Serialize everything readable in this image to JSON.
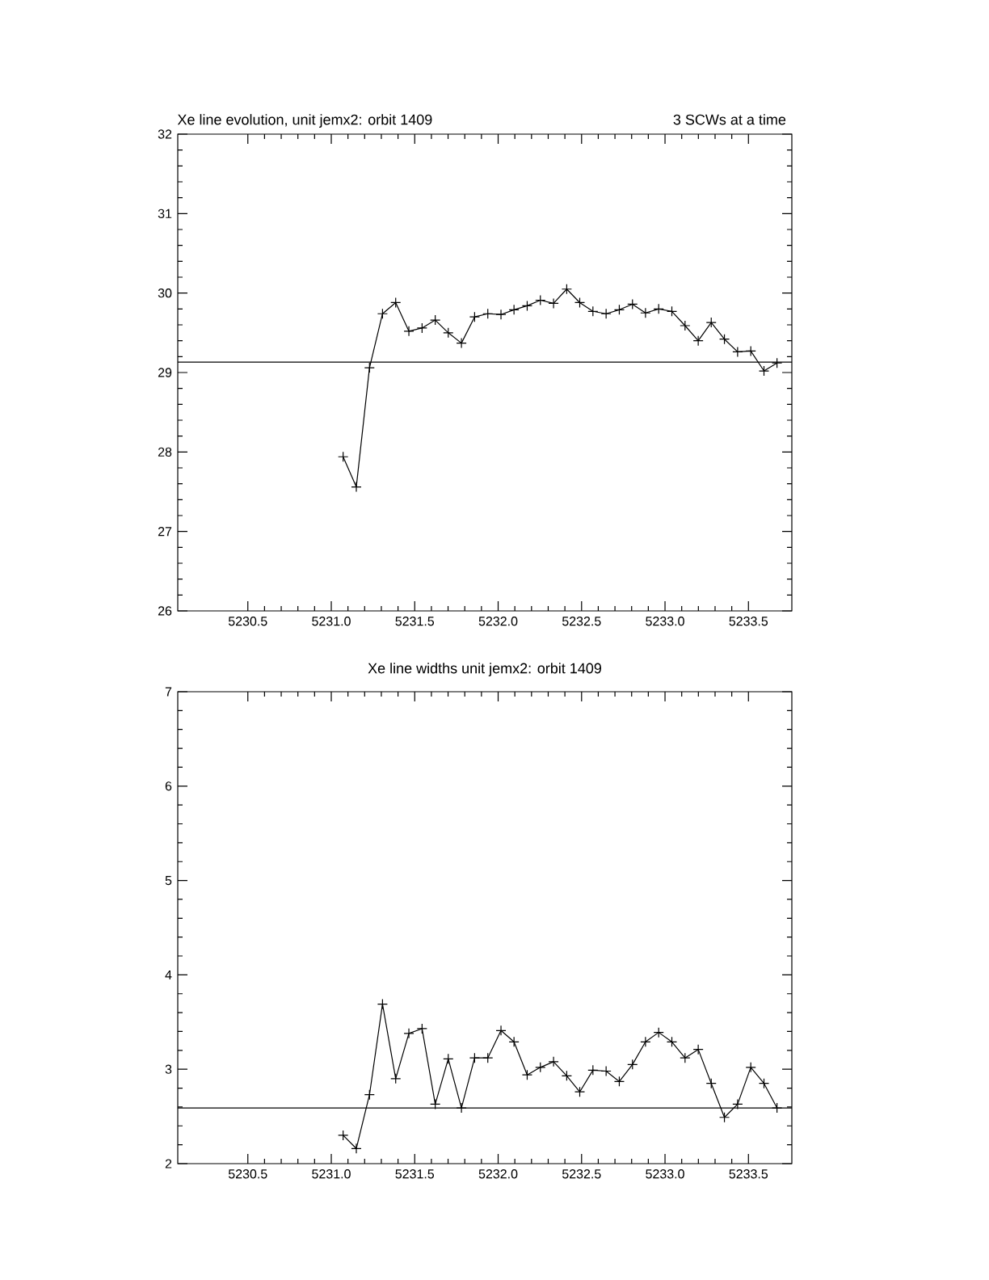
{
  "chart_data": [
    {
      "type": "line",
      "title": "Xe line evolution, unit jemx2: orbit 1409",
      "subtitle": "3 SCWs at a time",
      "x": [
        5231.071,
        5231.15,
        5231.229,
        5231.307,
        5231.386,
        5231.465,
        5231.544,
        5231.623,
        5231.701,
        5231.78,
        5231.859,
        5231.938,
        5232.017,
        5232.095,
        5232.174,
        5232.253,
        5232.332,
        5232.411,
        5232.489,
        5232.568,
        5232.647,
        5232.726,
        5232.805,
        5232.883,
        5232.962,
        5233.041,
        5233.12,
        5233.199,
        5233.277,
        5233.356,
        5233.435,
        5233.514,
        5233.593,
        5233.671
      ],
      "series": [
        {
          "color": "#000000",
          "values": [
            27.94,
            27.56,
            29.06,
            29.74,
            29.88,
            29.52,
            29.56,
            29.66,
            29.5,
            29.37,
            29.7,
            29.74,
            29.73,
            29.79,
            29.84,
            29.91,
            29.87,
            30.05,
            29.88,
            29.77,
            29.74,
            29.79,
            29.86,
            29.75,
            29.8,
            29.77,
            29.59,
            29.4,
            29.63,
            29.42,
            29.26,
            29.27,
            29.02,
            29.12
          ]
        }
      ],
      "ref_lines": [
        {
          "axis": "y",
          "value": 29.13,
          "color": "#000000"
        }
      ],
      "marker": "cross",
      "line_style": "solid",
      "xlim": [
        5230.08,
        5233.76
      ],
      "ylim": [
        26,
        32
      ],
      "xticks": [
        {
          "value": 5230.5,
          "label": "5230.5"
        },
        {
          "value": 5231.0,
          "label": "5231.0"
        },
        {
          "value": 5231.5,
          "label": "5231.5"
        },
        {
          "value": 5232.0,
          "label": "5232.0"
        },
        {
          "value": 5232.5,
          "label": "5232.5"
        },
        {
          "value": 5233.0,
          "label": "5233.0"
        },
        {
          "value": 5233.5,
          "label": "5233.5"
        }
      ],
      "yticks": [
        26,
        27,
        28,
        29,
        30,
        31,
        32
      ]
    },
    {
      "type": "line",
      "title": "Xe line widths unit jemx2: orbit 1409",
      "x": [
        5231.071,
        5231.15,
        5231.229,
        5231.307,
        5231.386,
        5231.465,
        5231.544,
        5231.623,
        5231.701,
        5231.78,
        5231.859,
        5231.938,
        5232.017,
        5232.095,
        5232.174,
        5232.253,
        5232.332,
        5232.411,
        5232.489,
        5232.568,
        5232.647,
        5232.726,
        5232.805,
        5232.883,
        5232.962,
        5233.041,
        5233.12,
        5233.199,
        5233.277,
        5233.356,
        5233.435,
        5233.514,
        5233.593,
        5233.671
      ],
      "series": [
        {
          "color": "#000000",
          "values": [
            2.3,
            2.16,
            2.73,
            3.69,
            2.9,
            3.38,
            3.43,
            2.63,
            3.11,
            2.59,
            3.12,
            3.12,
            3.41,
            3.29,
            2.94,
            3.02,
            3.08,
            2.93,
            2.76,
            2.99,
            2.98,
            2.87,
            3.05,
            3.29,
            3.39,
            3.29,
            3.12,
            3.21,
            2.85,
            2.49,
            2.63,
            3.02,
            2.85,
            2.59
          ]
        }
      ],
      "ref_lines": [
        {
          "axis": "y",
          "value": 2.59,
          "color": "#000000"
        }
      ],
      "marker": "cross",
      "line_style": "solid",
      "xlim": [
        5230.08,
        5233.76
      ],
      "ylim": [
        2,
        7
      ],
      "xticks": [
        {
          "value": 5230.5,
          "label": "5230.5"
        },
        {
          "value": 5231.0,
          "label": "5231.0"
        },
        {
          "value": 5231.5,
          "label": "5231.5"
        },
        {
          "value": 5232.0,
          "label": "5232.0"
        },
        {
          "value": 5232.5,
          "label": "5232.5"
        },
        {
          "value": 5233.0,
          "label": "5233.0"
        },
        {
          "value": 5233.5,
          "label": "5233.5"
        }
      ],
      "yticks": [
        2,
        3,
        4,
        5,
        6,
        7
      ]
    }
  ]
}
